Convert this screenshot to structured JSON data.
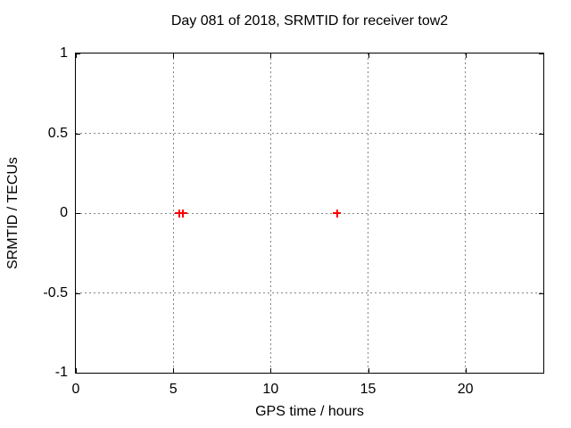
{
  "chart_data": {
    "type": "scatter",
    "title": "Day 081 of 2018, SRMTID for receiver tow2",
    "xlabel": "GPS time / hours",
    "ylabel": "SRMTID / TECUs",
    "xlim": [
      0,
      24
    ],
    "ylim": [
      -1,
      1
    ],
    "xticks": [
      0,
      5,
      10,
      15,
      20
    ],
    "xtick_labels": [
      "0",
      "5",
      "10",
      "15",
      "20"
    ],
    "yticks": [
      -1,
      -0.5,
      0,
      0.5,
      1
    ],
    "ytick_labels": [
      "-1",
      "-0.5",
      "0",
      "0.5",
      "1"
    ],
    "grid": true,
    "legend_position": "none",
    "series": [
      {
        "name": "SRMTID",
        "marker": "plus",
        "color": "#ff0000",
        "points": [
          [
            5.3,
            0.0
          ],
          [
            5.5,
            0.0
          ],
          [
            13.4,
            0.0
          ]
        ]
      }
    ],
    "colors": {
      "grid": "#858585",
      "axis": "#000000",
      "background": "#ffffff"
    }
  }
}
